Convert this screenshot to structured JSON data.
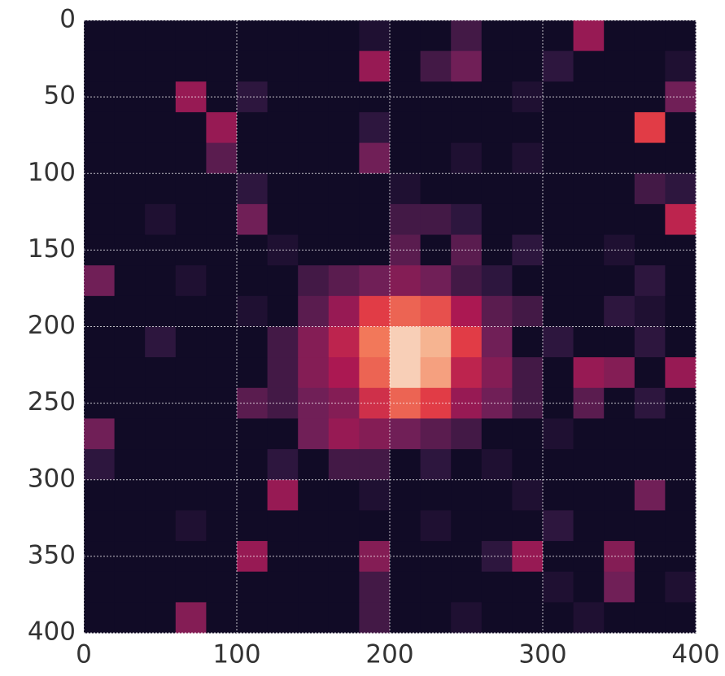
{
  "chart_data": {
    "type": "image",
    "colormap": "rocket",
    "grid": true,
    "xlim": [
      0,
      400
    ],
    "ylim": [
      400,
      0
    ],
    "xticks": [
      0,
      100,
      200,
      300,
      400
    ],
    "yticks": [
      0,
      50,
      100,
      150,
      200,
      250,
      300,
      350,
      400
    ],
    "values": [
      [
        0.05,
        0.05,
        0.05,
        0.05,
        0.05,
        0.05,
        0.05,
        0.05,
        0.05,
        0.1,
        0.05,
        0.05,
        0.2,
        0.05,
        0.05,
        0.05,
        0.4,
        0.05,
        0.05,
        0.05
      ],
      [
        0.05,
        0.05,
        0.05,
        0.05,
        0.05,
        0.05,
        0.05,
        0.05,
        0.05,
        0.4,
        0.05,
        0.2,
        0.3,
        0.05,
        0.05,
        0.15,
        0.05,
        0.05,
        0.05,
        0.1
      ],
      [
        0.05,
        0.05,
        0.05,
        0.4,
        0.05,
        0.15,
        0.05,
        0.05,
        0.05,
        0.05,
        0.05,
        0.05,
        0.05,
        0.05,
        0.1,
        0.05,
        0.05,
        0.05,
        0.05,
        0.3
      ],
      [
        0.05,
        0.05,
        0.05,
        0.05,
        0.4,
        0.05,
        0.05,
        0.05,
        0.05,
        0.15,
        0.05,
        0.05,
        0.05,
        0.05,
        0.05,
        0.05,
        0.05,
        0.05,
        0.6,
        0.05
      ],
      [
        0.05,
        0.05,
        0.05,
        0.05,
        0.25,
        0.05,
        0.05,
        0.05,
        0.05,
        0.3,
        0.05,
        0.05,
        0.1,
        0.05,
        0.1,
        0.05,
        0.05,
        0.05,
        0.05,
        0.05
      ],
      [
        0.05,
        0.05,
        0.05,
        0.05,
        0.05,
        0.15,
        0.05,
        0.05,
        0.05,
        0.05,
        0.1,
        0.05,
        0.05,
        0.05,
        0.05,
        0.05,
        0.05,
        0.05,
        0.2,
        0.15
      ],
      [
        0.05,
        0.05,
        0.1,
        0.05,
        0.05,
        0.3,
        0.05,
        0.05,
        0.05,
        0.05,
        0.2,
        0.2,
        0.15,
        0.05,
        0.05,
        0.05,
        0.05,
        0.05,
        0.05,
        0.5
      ],
      [
        0.05,
        0.05,
        0.05,
        0.05,
        0.05,
        0.05,
        0.1,
        0.05,
        0.05,
        0.05,
        0.25,
        0.05,
        0.25,
        0.05,
        0.15,
        0.05,
        0.05,
        0.1,
        0.05,
        0.05
      ],
      [
        0.3,
        0.05,
        0.05,
        0.1,
        0.05,
        0.05,
        0.05,
        0.2,
        0.25,
        0.3,
        0.35,
        0.3,
        0.2,
        0.15,
        0.05,
        0.05,
        0.05,
        0.05,
        0.15,
        0.05
      ],
      [
        0.05,
        0.05,
        0.05,
        0.05,
        0.05,
        0.1,
        0.05,
        0.25,
        0.4,
        0.6,
        0.7,
        0.65,
        0.45,
        0.25,
        0.2,
        0.05,
        0.05,
        0.15,
        0.1,
        0.05
      ],
      [
        0.05,
        0.05,
        0.15,
        0.05,
        0.05,
        0.05,
        0.2,
        0.35,
        0.5,
        0.75,
        0.95,
        0.9,
        0.6,
        0.3,
        0.05,
        0.15,
        0.05,
        0.05,
        0.15,
        0.05
      ],
      [
        0.05,
        0.05,
        0.05,
        0.05,
        0.05,
        0.05,
        0.2,
        0.35,
        0.45,
        0.7,
        0.95,
        0.85,
        0.5,
        0.35,
        0.2,
        0.05,
        0.4,
        0.35,
        0.05,
        0.4
      ],
      [
        0.05,
        0.05,
        0.05,
        0.05,
        0.05,
        0.25,
        0.2,
        0.3,
        0.35,
        0.55,
        0.7,
        0.6,
        0.4,
        0.3,
        0.2,
        0.05,
        0.25,
        0.05,
        0.15,
        0.05
      ],
      [
        0.3,
        0.05,
        0.05,
        0.05,
        0.05,
        0.05,
        0.05,
        0.3,
        0.4,
        0.35,
        0.3,
        0.25,
        0.2,
        0.05,
        0.05,
        0.1,
        0.05,
        0.05,
        0.05,
        0.05
      ],
      [
        0.15,
        0.05,
        0.05,
        0.05,
        0.05,
        0.05,
        0.15,
        0.05,
        0.2,
        0.2,
        0.05,
        0.15,
        0.05,
        0.1,
        0.05,
        0.05,
        0.05,
        0.05,
        0.05,
        0.05
      ],
      [
        0.05,
        0.05,
        0.05,
        0.05,
        0.05,
        0.05,
        0.4,
        0.05,
        0.05,
        0.1,
        0.05,
        0.05,
        0.05,
        0.05,
        0.1,
        0.05,
        0.05,
        0.05,
        0.3,
        0.05
      ],
      [
        0.05,
        0.05,
        0.05,
        0.1,
        0.05,
        0.05,
        0.05,
        0.05,
        0.05,
        0.05,
        0.05,
        0.1,
        0.05,
        0.05,
        0.05,
        0.15,
        0.05,
        0.05,
        0.05,
        0.05
      ],
      [
        0.05,
        0.05,
        0.05,
        0.05,
        0.05,
        0.4,
        0.05,
        0.05,
        0.05,
        0.35,
        0.05,
        0.05,
        0.05,
        0.15,
        0.4,
        0.05,
        0.05,
        0.35,
        0.05,
        0.05
      ],
      [
        0.05,
        0.05,
        0.05,
        0.05,
        0.05,
        0.05,
        0.05,
        0.05,
        0.05,
        0.2,
        0.05,
        0.05,
        0.05,
        0.05,
        0.05,
        0.1,
        0.05,
        0.3,
        0.05,
        0.1
      ],
      [
        0.05,
        0.05,
        0.05,
        0.35,
        0.05,
        0.05,
        0.05,
        0.05,
        0.05,
        0.2,
        0.05,
        0.05,
        0.1,
        0.05,
        0.05,
        0.05,
        0.1,
        0.05,
        0.05,
        0.05
      ]
    ]
  }
}
